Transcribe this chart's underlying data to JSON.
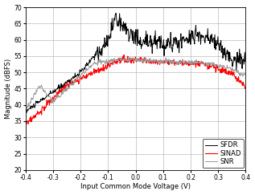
{
  "title": "",
  "xlabel": "Input Common Mode Voltage (V)",
  "ylabel": "Magnitude (dBFS)",
  "xlim": [
    -0.4,
    0.4
  ],
  "ylim": [
    20,
    70
  ],
  "yticks": [
    20,
    25,
    30,
    35,
    40,
    45,
    50,
    55,
    60,
    65,
    70
  ],
  "xticks": [
    -0.4,
    -0.3,
    -0.2,
    -0.1,
    0.0,
    0.1,
    0.2,
    0.3,
    0.4
  ],
  "legend_labels": [
    "SFDR",
    "SINAD",
    "SNR"
  ],
  "sfdr_color": "black",
  "sinad_color": "red",
  "snr_color": "#999999",
  "background_color": "#ffffff",
  "legend_loc": "lower right",
  "xlabel_fontsize": 6.0,
  "ylabel_fontsize": 6.0,
  "tick_fontsize": 5.5,
  "legend_fontsize": 6.0
}
